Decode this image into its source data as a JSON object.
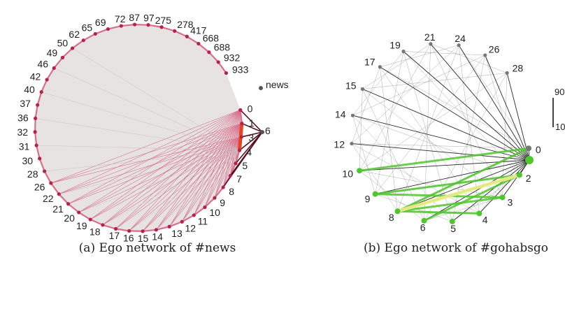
{
  "panels": [
    {
      "caption": "(a) Ego network of #news",
      "ego_label": "news",
      "outlier_label": "6",
      "labels": [
        "0",
        "1",
        "3",
        "4",
        "5",
        "7",
        "8",
        "9",
        "10",
        "11",
        "12",
        "13",
        "14",
        "15",
        "16",
        "17",
        "18",
        "19",
        "20",
        "21",
        "22",
        "26",
        "28",
        "30",
        "31",
        "32",
        "36",
        "37",
        "40",
        "42",
        "46",
        "49",
        "50",
        "62",
        "65",
        "69",
        "72",
        "87",
        "97",
        "275",
        "278",
        "417",
        "668",
        "688",
        "932",
        "933"
      ],
      "colors": {
        "fill": "#e7e3e3",
        "node": "#b8224a",
        "edge": "#d8708c",
        "dark_edge": "#5a0f20",
        "highlight": "#e8421e"
      }
    },
    {
      "caption": "(b) Ego network of #gohabsgo",
      "labels": [
        "0",
        "2",
        "3",
        "4",
        "5",
        "6",
        "8",
        "9",
        "10",
        "12",
        "14",
        "15",
        "17",
        "19",
        "21",
        "24",
        "26",
        "28"
      ],
      "extra_labels": [
        "90",
        "10"
      ],
      "colors": {
        "node": "#777777",
        "edge": "#8a8a8a",
        "dark_edge": "#2a2a2a",
        "green": "#4fc62d",
        "yellow": "#f1ec8a"
      }
    }
  ]
}
